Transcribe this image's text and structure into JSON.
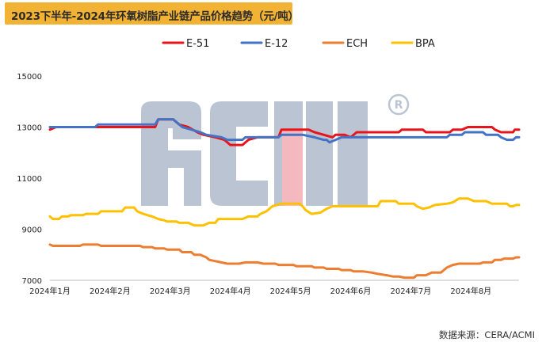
{
  "title": "2023下半年-2024年环氧树脂产业链产品价格趋势（元/吨）",
  "source": "数据来源：CERA/ACMI",
  "watermark": "ACMI®",
  "chart_data": {
    "type": "line",
    "title": "2023下半年-2024年环氧树脂产业链产品价格趋势（元/吨）",
    "xlabel": "",
    "ylabel": "",
    "ylim": [
      7000,
      15000
    ],
    "xlim": [
      0,
      7.8
    ],
    "yticks": [
      7000,
      9000,
      11000,
      13000,
      15000
    ],
    "xtick_labels": [
      "2024年1月",
      "2024年2月",
      "2024年3月",
      "2024年4月",
      "2024年5月",
      "2024年6月",
      "2024年7月",
      "2024年8月"
    ],
    "legend_position": "top",
    "series": [
      {
        "name": "E-51",
        "color": "#e8141b",
        "points": [
          [
            0.0,
            12900
          ],
          [
            0.05,
            12950
          ],
          [
            0.1,
            13000
          ],
          [
            0.5,
            13000
          ],
          [
            0.75,
            13000
          ],
          [
            1.0,
            13000
          ],
          [
            1.55,
            13000
          ],
          [
            1.75,
            13000
          ],
          [
            1.8,
            13300
          ],
          [
            2.05,
            13300
          ],
          [
            2.15,
            13100
          ],
          [
            2.3,
            13000
          ],
          [
            2.45,
            12800
          ],
          [
            2.55,
            12700
          ],
          [
            2.75,
            12600
          ],
          [
            2.9,
            12500
          ],
          [
            3.0,
            12300
          ],
          [
            3.2,
            12300
          ],
          [
            3.3,
            12500
          ],
          [
            3.45,
            12600
          ],
          [
            3.8,
            12600
          ],
          [
            3.85,
            12900
          ],
          [
            4.3,
            12900
          ],
          [
            4.4,
            12800
          ],
          [
            4.55,
            12700
          ],
          [
            4.7,
            12600
          ],
          [
            4.75,
            12700
          ],
          [
            4.9,
            12700
          ],
          [
            5.0,
            12600
          ],
          [
            5.1,
            12800
          ],
          [
            5.3,
            12800
          ],
          [
            5.8,
            12800
          ],
          [
            5.85,
            12900
          ],
          [
            6.2,
            12900
          ],
          [
            6.25,
            12800
          ],
          [
            6.65,
            12800
          ],
          [
            6.7,
            12900
          ],
          [
            6.85,
            12900
          ],
          [
            6.95,
            13000
          ],
          [
            7.35,
            13000
          ],
          [
            7.4,
            12900
          ],
          [
            7.5,
            12800
          ],
          [
            7.7,
            12800
          ],
          [
            7.73,
            12900
          ],
          [
            7.8,
            12900
          ]
        ]
      },
      {
        "name": "E-12",
        "color": "#4472c4",
        "points": [
          [
            0.0,
            13000
          ],
          [
            0.5,
            13000
          ],
          [
            0.75,
            13000
          ],
          [
            0.8,
            13100
          ],
          [
            1.3,
            13100
          ],
          [
            1.35,
            13100
          ],
          [
            1.75,
            13100
          ],
          [
            1.8,
            13300
          ],
          [
            2.05,
            13300
          ],
          [
            2.1,
            13200
          ],
          [
            2.2,
            13000
          ],
          [
            2.35,
            12900
          ],
          [
            2.5,
            12800
          ],
          [
            2.6,
            12700
          ],
          [
            2.85,
            12600
          ],
          [
            2.95,
            12500
          ],
          [
            3.2,
            12500
          ],
          [
            3.25,
            12600
          ],
          [
            3.45,
            12600
          ],
          [
            3.8,
            12600
          ],
          [
            3.85,
            12700
          ],
          [
            4.2,
            12700
          ],
          [
            4.4,
            12600
          ],
          [
            4.55,
            12500
          ],
          [
            4.6,
            12500
          ],
          [
            4.65,
            12400
          ],
          [
            4.75,
            12500
          ],
          [
            4.85,
            12600
          ],
          [
            5.2,
            12600
          ],
          [
            6.3,
            12600
          ],
          [
            6.6,
            12600
          ],
          [
            6.65,
            12700
          ],
          [
            6.85,
            12700
          ],
          [
            6.9,
            12800
          ],
          [
            7.2,
            12800
          ],
          [
            7.25,
            12700
          ],
          [
            7.45,
            12700
          ],
          [
            7.5,
            12600
          ],
          [
            7.6,
            12500
          ],
          [
            7.7,
            12500
          ],
          [
            7.75,
            12600
          ],
          [
            7.8,
            12600
          ]
        ]
      },
      {
        "name": "ECH",
        "color": "#ed7d31",
        "points": [
          [
            0.0,
            8400
          ],
          [
            0.05,
            8350
          ],
          [
            0.5,
            8350
          ],
          [
            0.55,
            8400
          ],
          [
            0.8,
            8400
          ],
          [
            0.85,
            8350
          ],
          [
            1.5,
            8350
          ],
          [
            1.55,
            8300
          ],
          [
            1.7,
            8300
          ],
          [
            1.75,
            8250
          ],
          [
            1.9,
            8250
          ],
          [
            1.95,
            8200
          ],
          [
            2.15,
            8200
          ],
          [
            2.2,
            8100
          ],
          [
            2.35,
            8100
          ],
          [
            2.4,
            8000
          ],
          [
            2.5,
            8000
          ],
          [
            2.6,
            7900
          ],
          [
            2.65,
            7800
          ],
          [
            2.75,
            7750
          ],
          [
            2.85,
            7700
          ],
          [
            2.95,
            7650
          ],
          [
            3.15,
            7650
          ],
          [
            3.25,
            7700
          ],
          [
            3.45,
            7700
          ],
          [
            3.55,
            7650
          ],
          [
            3.75,
            7650
          ],
          [
            3.8,
            7600
          ],
          [
            4.05,
            7600
          ],
          [
            4.1,
            7550
          ],
          [
            4.35,
            7550
          ],
          [
            4.4,
            7500
          ],
          [
            4.55,
            7500
          ],
          [
            4.6,
            7450
          ],
          [
            4.8,
            7450
          ],
          [
            4.85,
            7400
          ],
          [
            5.0,
            7400
          ],
          [
            5.05,
            7350
          ],
          [
            5.2,
            7350
          ],
          [
            5.35,
            7300
          ],
          [
            5.45,
            7250
          ],
          [
            5.6,
            7200
          ],
          [
            5.7,
            7150
          ],
          [
            5.8,
            7150
          ],
          [
            5.9,
            7100
          ],
          [
            6.05,
            7100
          ],
          [
            6.1,
            7200
          ],
          [
            6.25,
            7200
          ],
          [
            6.35,
            7300
          ],
          [
            6.5,
            7300
          ],
          [
            6.55,
            7400
          ],
          [
            6.6,
            7500
          ],
          [
            6.65,
            7550
          ],
          [
            6.7,
            7600
          ],
          [
            6.8,
            7650
          ],
          [
            7.15,
            7650
          ],
          [
            7.2,
            7700
          ],
          [
            7.35,
            7700
          ],
          [
            7.4,
            7800
          ],
          [
            7.5,
            7800
          ],
          [
            7.55,
            7850
          ],
          [
            7.7,
            7850
          ],
          [
            7.75,
            7900
          ],
          [
            7.8,
            7900
          ]
        ]
      },
      {
        "name": "BPA",
        "color": "#ffc000",
        "points": [
          [
            0.0,
            9500
          ],
          [
            0.05,
            9400
          ],
          [
            0.15,
            9400
          ],
          [
            0.2,
            9500
          ],
          [
            0.3,
            9500
          ],
          [
            0.35,
            9550
          ],
          [
            0.55,
            9550
          ],
          [
            0.6,
            9600
          ],
          [
            0.8,
            9600
          ],
          [
            0.85,
            9700
          ],
          [
            1.2,
            9700
          ],
          [
            1.25,
            9850
          ],
          [
            1.4,
            9850
          ],
          [
            1.45,
            9700
          ],
          [
            1.55,
            9600
          ],
          [
            1.7,
            9500
          ],
          [
            1.8,
            9400
          ],
          [
            1.9,
            9350
          ],
          [
            1.95,
            9300
          ],
          [
            2.1,
            9300
          ],
          [
            2.15,
            9250
          ],
          [
            2.3,
            9250
          ],
          [
            2.4,
            9150
          ],
          [
            2.55,
            9150
          ],
          [
            2.65,
            9250
          ],
          [
            2.75,
            9250
          ],
          [
            2.8,
            9400
          ],
          [
            3.2,
            9400
          ],
          [
            3.3,
            9500
          ],
          [
            3.45,
            9500
          ],
          [
            3.5,
            9600
          ],
          [
            3.6,
            9700
          ],
          [
            3.7,
            9900
          ],
          [
            3.85,
            10000
          ],
          [
            4.15,
            10000
          ],
          [
            4.2,
            9900
          ],
          [
            4.25,
            9750
          ],
          [
            4.35,
            9600
          ],
          [
            4.5,
            9650
          ],
          [
            4.6,
            9800
          ],
          [
            4.7,
            9900
          ],
          [
            5.0,
            9900
          ],
          [
            5.45,
            9900
          ],
          [
            5.5,
            10100
          ],
          [
            5.75,
            10100
          ],
          [
            5.8,
            10000
          ],
          [
            6.05,
            10000
          ],
          [
            6.1,
            9900
          ],
          [
            6.2,
            9800
          ],
          [
            6.3,
            9850
          ],
          [
            6.4,
            9950
          ],
          [
            6.6,
            10000
          ],
          [
            6.7,
            10050
          ],
          [
            6.8,
            10200
          ],
          [
            6.95,
            10200
          ],
          [
            7.05,
            10100
          ],
          [
            7.25,
            10100
          ],
          [
            7.35,
            10000
          ],
          [
            7.6,
            10000
          ],
          [
            7.65,
            9900
          ],
          [
            7.7,
            9900
          ],
          [
            7.75,
            9950
          ],
          [
            7.8,
            9950
          ]
        ]
      }
    ]
  }
}
